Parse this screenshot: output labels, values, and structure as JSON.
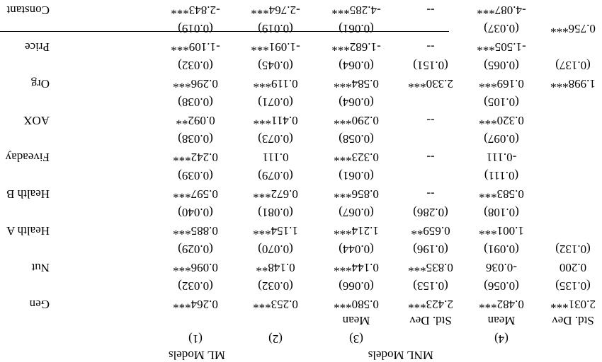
{
  "header": {
    "group_mnl": "MNL Models",
    "group_ml": "ML Models",
    "model_nums": [
      "(1)",
      "(2)",
      "(3)",
      "(4)"
    ],
    "sub_mean_3": "Mean",
    "sub_sd_3": "Std. Dev",
    "sub_mean_4": "Mean",
    "sub_sd_4": "Std. Dev"
  },
  "rows": [
    {
      "label": "Constant",
      "coef": [
        "-2.843***",
        "-2.764***",
        "-4.285***",
        "--",
        "-4.087***",
        ""
      ],
      "se": [
        "(0.019)",
        "(0.019)",
        "(0.061)",
        "",
        "(0.037)",
        "0.756***"
      ]
    },
    {
      "label": "Price",
      "coef": [
        "-1.109***",
        "-1.091***",
        "-1.682***",
        "--",
        "-1.505***",
        ""
      ],
      "se": [
        "(0.032)",
        "(0.045)",
        "(0.064)",
        "(0.151)",
        "(0.065)",
        "(0.137)"
      ]
    },
    {
      "label": "Org",
      "coef": [
        "0.296***",
        "0.119***",
        "0.584***",
        "2.330***",
        "0.169***",
        "1.998***"
      ],
      "se": [
        "(0.038)",
        "(0.071)",
        "(0.064)",
        "",
        "(0.105)",
        ""
      ]
    },
    {
      "label": "AOX",
      "coef": [
        "0.092**",
        "0.411***",
        "0.290***",
        "--",
        "0.320***",
        ""
      ],
      "se": [
        "(0.038)",
        "(0.073)",
        "(0.058)",
        "",
        "(0.097)",
        ""
      ]
    },
    {
      "label": "Fiveaday",
      "coef": [
        "0.242***",
        "0.111",
        "0.323***",
        "--",
        "-0.111",
        ""
      ],
      "se": [
        "(0.039)",
        "(0.079)",
        "(0.061)",
        "",
        "(0.111)",
        ""
      ]
    },
    {
      "label": "Health B",
      "coef": [
        "0.597***",
        "0.672***",
        "0.856***",
        "--",
        "0.583***",
        ""
      ],
      "se": [
        "(0.040)",
        "(0.081)",
        "(0.067)",
        "(0.286)",
        "(0.108)",
        ""
      ]
    },
    {
      "label": "Health A",
      "coef": [
        "0.885***",
        "1.154***",
        "1.214***",
        "0.659**",
        "1.001***",
        ""
      ],
      "se": [
        "(0.029)",
        "(0.070)",
        "(0.044)",
        "(0.196)",
        "(0.091)",
        "(0.132)"
      ]
    },
    {
      "label": "Nut",
      "coef": [
        "0.096***",
        "0.148**",
        "0.144***",
        "0.835***",
        "-0.036",
        "0.200"
      ],
      "se": [
        "(0.032)",
        "(0.032)",
        "(0.066)",
        "(0.153)",
        "(0.056)",
        "(0.135)"
      ]
    },
    {
      "label": "Gen",
      "coef": [
        "0.264***",
        "0.253***",
        "0.580***",
        "2.423***",
        "0.482***",
        "2.031***"
      ],
      "se": [
        "",
        "",
        "",
        "",
        "",
        ""
      ]
    }
  ]
}
